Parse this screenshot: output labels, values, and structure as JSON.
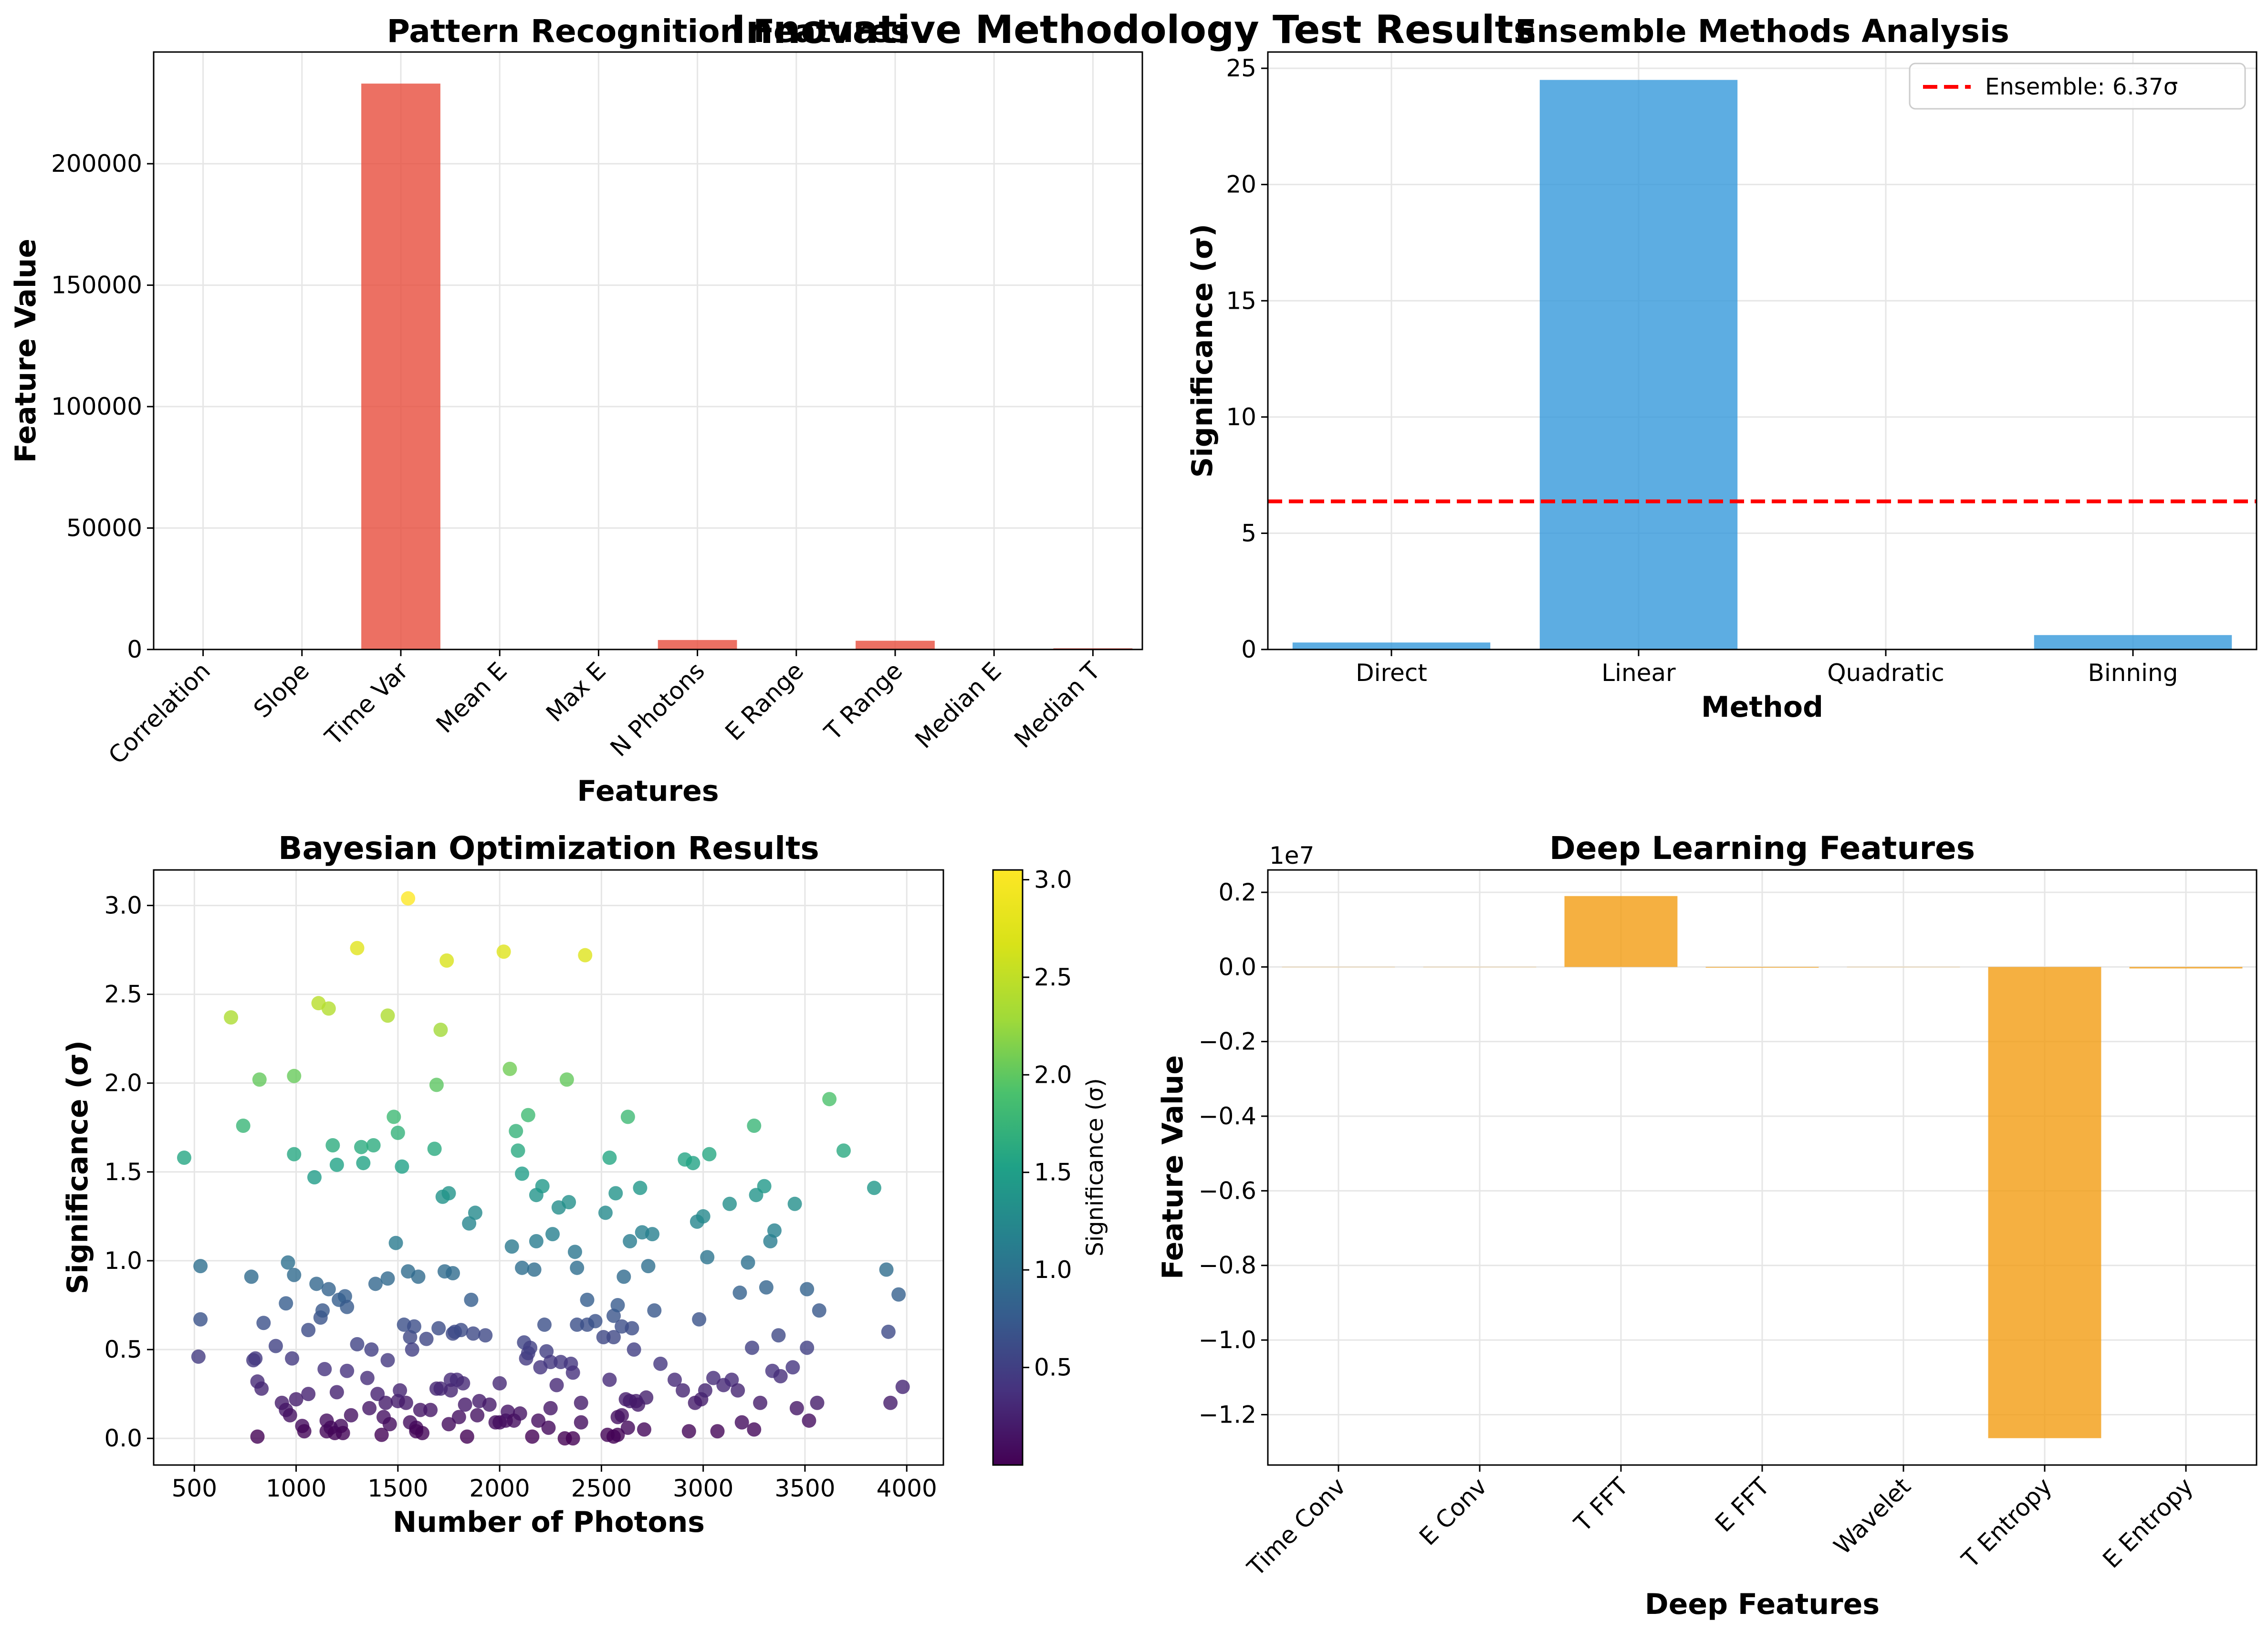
{
  "figure": {
    "title": "Innovative Methodology Test Results",
    "colors": {
      "pattern": "#e74c3c",
      "ensemble": "#3498db",
      "deep": "#f39c12",
      "ensemble_line": "#ff0000",
      "grid": "#e6e6e6"
    }
  },
  "chart_data": [
    {
      "id": "pattern",
      "type": "bar",
      "title": "Pattern Recognition Features",
      "xlabel": "Features",
      "ylabel": "Feature Value",
      "categories": [
        "Correlation",
        "Slope",
        "Time Var",
        "Mean E",
        "Max E",
        "N Photons",
        "E Range",
        "T Range",
        "Median E",
        "Median T"
      ],
      "values": [
        0.1,
        0.5,
        233000,
        50,
        120,
        3900,
        110,
        3600,
        20,
        500
      ],
      "ylim": [
        0,
        246000
      ],
      "yticks": [
        0,
        50000,
        100000,
        150000,
        200000
      ],
      "ytick_labels": [
        "0",
        "50000",
        "100000",
        "150000",
        "200000"
      ],
      "grid": true
    },
    {
      "id": "ensemble",
      "type": "bar",
      "title": "Ensemble Methods Analysis",
      "xlabel": "Method",
      "ylabel": "Significance (σ)",
      "categories": [
        "Direct",
        "Linear",
        "Quadratic",
        "Binning"
      ],
      "values": [
        0.3,
        24.5,
        0.0,
        0.62
      ],
      "ylim": [
        0,
        25.7
      ],
      "yticks": [
        0,
        5,
        10,
        15,
        20,
        25
      ],
      "ytick_labels": [
        "0",
        "5",
        "10",
        "15",
        "20",
        "25"
      ],
      "hline": {
        "value": 6.37,
        "label": "Ensemble: 6.37σ"
      },
      "legend": "top-right",
      "grid": true
    },
    {
      "id": "bayes",
      "type": "scatter",
      "title": "Bayesian Optimization Results",
      "xlabel": "Number of Photons",
      "ylabel": "Significance (σ)",
      "xlim": [
        300,
        4180
      ],
      "ylim": [
        -0.15,
        3.2
      ],
      "xticks": [
        500,
        1000,
        1500,
        2000,
        2500,
        3000,
        3500,
        4000
      ],
      "xtick_labels": [
        "500",
        "1000",
        "1500",
        "2000",
        "2500",
        "3000",
        "3500",
        "4000"
      ],
      "yticks": [
        0.0,
        0.5,
        1.0,
        1.5,
        2.0,
        2.5,
        3.0
      ],
      "ytick_labels": [
        "0.0",
        "0.5",
        "1.0",
        "1.5",
        "2.0",
        "2.5",
        "3.0"
      ],
      "colorbar": {
        "label": "Significance (σ)",
        "colormap": "viridis",
        "range": [
          0.0,
          3.05
        ],
        "ticks": [
          0.5,
          1.0,
          1.5,
          2.0,
          2.5,
          3.0
        ],
        "tick_labels": [
          "0.5",
          "1.0",
          "1.5",
          "2.0",
          "2.5",
          "3.0"
        ]
      },
      "points": [
        [
          450,
          1.58
        ],
        [
          530,
          0.97
        ],
        [
          530,
          0.67
        ],
        [
          520,
          0.46
        ],
        [
          680,
          2.37
        ],
        [
          740,
          1.76
        ],
        [
          780,
          0.91
        ],
        [
          800,
          0.45
        ],
        [
          790,
          0.44
        ],
        [
          810,
          0.01
        ],
        [
          810,
          0.32
        ],
        [
          820,
          2.02
        ],
        [
          830,
          0.28
        ],
        [
          840,
          0.65
        ],
        [
          900,
          0.52
        ],
        [
          930,
          0.2
        ],
        [
          950,
          0.76
        ],
        [
          950,
          0.16
        ],
        [
          960,
          0.99
        ],
        [
          970,
          0.13
        ],
        [
          980,
          0.45
        ],
        [
          990,
          2.04
        ],
        [
          990,
          1.6
        ],
        [
          990,
          0.92
        ],
        [
          1000,
          0.22
        ],
        [
          1030,
          0.07
        ],
        [
          1040,
          0.04
        ],
        [
          1060,
          0.61
        ],
        [
          1060,
          0.25
        ],
        [
          1090,
          1.47
        ],
        [
          1100,
          0.87
        ],
        [
          1110,
          2.45
        ],
        [
          1120,
          0.68
        ],
        [
          1130,
          0.72
        ],
        [
          1140,
          0.39
        ],
        [
          1150,
          0.04
        ],
        [
          1150,
          0.1
        ],
        [
          1160,
          0.84
        ],
        [
          1160,
          2.42
        ],
        [
          1170,
          0.06
        ],
        [
          1180,
          1.65
        ],
        [
          1190,
          0.03
        ],
        [
          1200,
          1.54
        ],
        [
          1200,
          0.26
        ],
        [
          1210,
          0.78
        ],
        [
          1220,
          0.07
        ],
        [
          1230,
          0.03
        ],
        [
          1240,
          0.8
        ],
        [
          1250,
          0.74
        ],
        [
          1250,
          0.38
        ],
        [
          1270,
          0.13
        ],
        [
          1300,
          2.76
        ],
        [
          1300,
          0.53
        ],
        [
          1320,
          1.64
        ],
        [
          1330,
          1.55
        ],
        [
          1350,
          0.34
        ],
        [
          1360,
          0.17
        ],
        [
          1370,
          0.5
        ],
        [
          1380,
          1.65
        ],
        [
          1390,
          0.87
        ],
        [
          1400,
          0.25
        ],
        [
          1420,
          0.02
        ],
        [
          1430,
          0.12
        ],
        [
          1440,
          0.2
        ],
        [
          1450,
          0.44
        ],
        [
          1450,
          0.9
        ],
        [
          1450,
          2.38
        ],
        [
          1460,
          0.08
        ],
        [
          1480,
          1.81
        ],
        [
          1490,
          1.1
        ],
        [
          1500,
          1.72
        ],
        [
          1500,
          0.21
        ],
        [
          1510,
          0.27
        ],
        [
          1520,
          1.53
        ],
        [
          1530,
          0.64
        ],
        [
          1540,
          0.2
        ],
        [
          1550,
          3.04
        ],
        [
          1550,
          0.94
        ],
        [
          1560,
          0.57
        ],
        [
          1560,
          0.09
        ],
        [
          1570,
          0.5
        ],
        [
          1580,
          0.63
        ],
        [
          1590,
          0.06
        ],
        [
          1590,
          0.04
        ],
        [
          1600,
          0.91
        ],
        [
          1610,
          0.16
        ],
        [
          1620,
          0.03
        ],
        [
          1640,
          0.56
        ],
        [
          1660,
          0.16
        ],
        [
          1680,
          1.63
        ],
        [
          1690,
          0.28
        ],
        [
          1690,
          1.99
        ],
        [
          1700,
          0.62
        ],
        [
          1710,
          2.3
        ],
        [
          1710,
          0.28
        ],
        [
          1720,
          1.36
        ],
        [
          1730,
          0.94
        ],
        [
          1740,
          2.69
        ],
        [
          1750,
          1.38
        ],
        [
          1750,
          0.08
        ],
        [
          1760,
          0.33
        ],
        [
          1760,
          0.27
        ],
        [
          1770,
          0.59
        ],
        [
          1770,
          0.93
        ],
        [
          1780,
          0.6
        ],
        [
          1790,
          0.33
        ],
        [
          1800,
          0.12
        ],
        [
          1810,
          0.61
        ],
        [
          1820,
          0.31
        ],
        [
          1830,
          0.19
        ],
        [
          1840,
          0.01
        ],
        [
          1850,
          1.21
        ],
        [
          1860,
          0.78
        ],
        [
          1870,
          0.59
        ],
        [
          1880,
          1.27
        ],
        [
          1890,
          0.13
        ],
        [
          1900,
          0.21
        ],
        [
          1930,
          0.58
        ],
        [
          1950,
          0.19
        ],
        [
          1980,
          0.09
        ],
        [
          2000,
          0.31
        ],
        [
          2000,
          0.09
        ],
        [
          2020,
          2.74
        ],
        [
          2030,
          0.1
        ],
        [
          2040,
          0.15
        ],
        [
          2050,
          2.08
        ],
        [
          2060,
          1.08
        ],
        [
          2070,
          0.1
        ],
        [
          2080,
          1.73
        ],
        [
          2090,
          1.62
        ],
        [
          2100,
          0.14
        ],
        [
          2110,
          1.49
        ],
        [
          2110,
          0.96
        ],
        [
          2120,
          0.54
        ],
        [
          2130,
          0.45
        ],
        [
          2140,
          1.82
        ],
        [
          2140,
          0.48
        ],
        [
          2150,
          0.51
        ],
        [
          2160,
          0.01
        ],
        [
          2170,
          0.95
        ],
        [
          2180,
          1.11
        ],
        [
          2180,
          1.37
        ],
        [
          2190,
          0.1
        ],
        [
          2200,
          0.4
        ],
        [
          2210,
          1.42
        ],
        [
          2220,
          0.64
        ],
        [
          2230,
          0.49
        ],
        [
          2240,
          0.06
        ],
        [
          2250,
          0.43
        ],
        [
          2250,
          0.17
        ],
        [
          2260,
          1.15
        ],
        [
          2280,
          0.3
        ],
        [
          2290,
          1.3
        ],
        [
          2300,
          0.43
        ],
        [
          2320,
          0.0
        ],
        [
          2330,
          2.02
        ],
        [
          2340,
          1.33
        ],
        [
          2350,
          0.42
        ],
        [
          2360,
          0.0
        ],
        [
          2360,
          0.37
        ],
        [
          2370,
          1.05
        ],
        [
          2380,
          0.96
        ],
        [
          2380,
          0.64
        ],
        [
          2400,
          0.2
        ],
        [
          2400,
          0.09
        ],
        [
          2420,
          2.72
        ],
        [
          2430,
          0.64
        ],
        [
          2430,
          0.78
        ],
        [
          2470,
          0.66
        ],
        [
          2510,
          0.57
        ],
        [
          2520,
          1.27
        ],
        [
          2530,
          0.02
        ],
        [
          2540,
          1.58
        ],
        [
          2540,
          0.33
        ],
        [
          2560,
          0.01
        ],
        [
          2560,
          0.57
        ],
        [
          2560,
          0.69
        ],
        [
          2570,
          1.38
        ],
        [
          2580,
          0.02
        ],
        [
          2580,
          0.75
        ],
        [
          2580,
          0.12
        ],
        [
          2600,
          0.13
        ],
        [
          2600,
          0.63
        ],
        [
          2610,
          0.91
        ],
        [
          2620,
          0.22
        ],
        [
          2630,
          1.81
        ],
        [
          2630,
          0.06
        ],
        [
          2640,
          0.21
        ],
        [
          2640,
          1.11
        ],
        [
          2650,
          0.62
        ],
        [
          2660,
          0.5
        ],
        [
          2670,
          0.21
        ],
        [
          2680,
          0.19
        ],
        [
          2690,
          1.41
        ],
        [
          2700,
          1.16
        ],
        [
          2710,
          0.05
        ],
        [
          2720,
          0.23
        ],
        [
          2730,
          0.97
        ],
        [
          2750,
          1.15
        ],
        [
          2760,
          0.72
        ],
        [
          2790,
          0.42
        ],
        [
          2860,
          0.33
        ],
        [
          2900,
          0.27
        ],
        [
          2910,
          1.57
        ],
        [
          2930,
          0.04
        ],
        [
          2950,
          1.55
        ],
        [
          2960,
          0.2
        ],
        [
          2970,
          1.22
        ],
        [
          2980,
          0.67
        ],
        [
          2990,
          0.22
        ],
        [
          3000,
          1.25
        ],
        [
          3010,
          0.27
        ],
        [
          3020,
          1.02
        ],
        [
          3030,
          1.6
        ],
        [
          3050,
          0.34
        ],
        [
          3070,
          0.04
        ],
        [
          3100,
          0.3
        ],
        [
          3130,
          1.32
        ],
        [
          3140,
          0.33
        ],
        [
          3170,
          0.27
        ],
        [
          3180,
          0.82
        ],
        [
          3190,
          0.09
        ],
        [
          3220,
          0.99
        ],
        [
          3240,
          0.51
        ],
        [
          3250,
          1.76
        ],
        [
          3250,
          0.05
        ],
        [
          3260,
          1.37
        ],
        [
          3280,
          0.2
        ],
        [
          3300,
          1.42
        ],
        [
          3310,
          0.85
        ],
        [
          3330,
          1.11
        ],
        [
          3340,
          0.38
        ],
        [
          3350,
          1.17
        ],
        [
          3370,
          0.58
        ],
        [
          3380,
          0.35
        ],
        [
          3440,
          0.4
        ],
        [
          3450,
          1.32
        ],
        [
          3460,
          0.17
        ],
        [
          3510,
          0.51
        ],
        [
          3510,
          0.84
        ],
        [
          3520,
          0.1
        ],
        [
          3560,
          0.2
        ],
        [
          3570,
          0.72
        ],
        [
          3620,
          1.91
        ],
        [
          3690,
          1.62
        ],
        [
          3840,
          1.41
        ],
        [
          3900,
          0.95
        ],
        [
          3910,
          0.6
        ],
        [
          3920,
          0.2
        ],
        [
          3960,
          0.81
        ],
        [
          3980,
          0.29
        ]
      ],
      "grid": true
    },
    {
      "id": "deep",
      "type": "bar",
      "title": "Deep Learning Features",
      "xlabel": "Deep Features",
      "ylabel": "Feature Value",
      "offset_label": "1e7",
      "categories": [
        "Time Conv",
        "E Conv",
        "T FFT",
        "E FFT",
        "Wavelet",
        "T Entropy",
        "E Entropy"
      ],
      "values": [
        0,
        0,
        0.19,
        -0.002,
        0,
        -1.263,
        -0.004
      ],
      "ylim": [
        -1.335,
        0.26
      ],
      "yticks": [
        0.2,
        0.0,
        -0.2,
        -0.4,
        -0.6,
        -0.8,
        -1.0,
        -1.2
      ],
      "ytick_labels": [
        "0.2",
        "0.0",
        "−0.2",
        "−0.4",
        "−0.6",
        "−0.8",
        "−1.0",
        "−1.2"
      ],
      "grid": true
    }
  ]
}
